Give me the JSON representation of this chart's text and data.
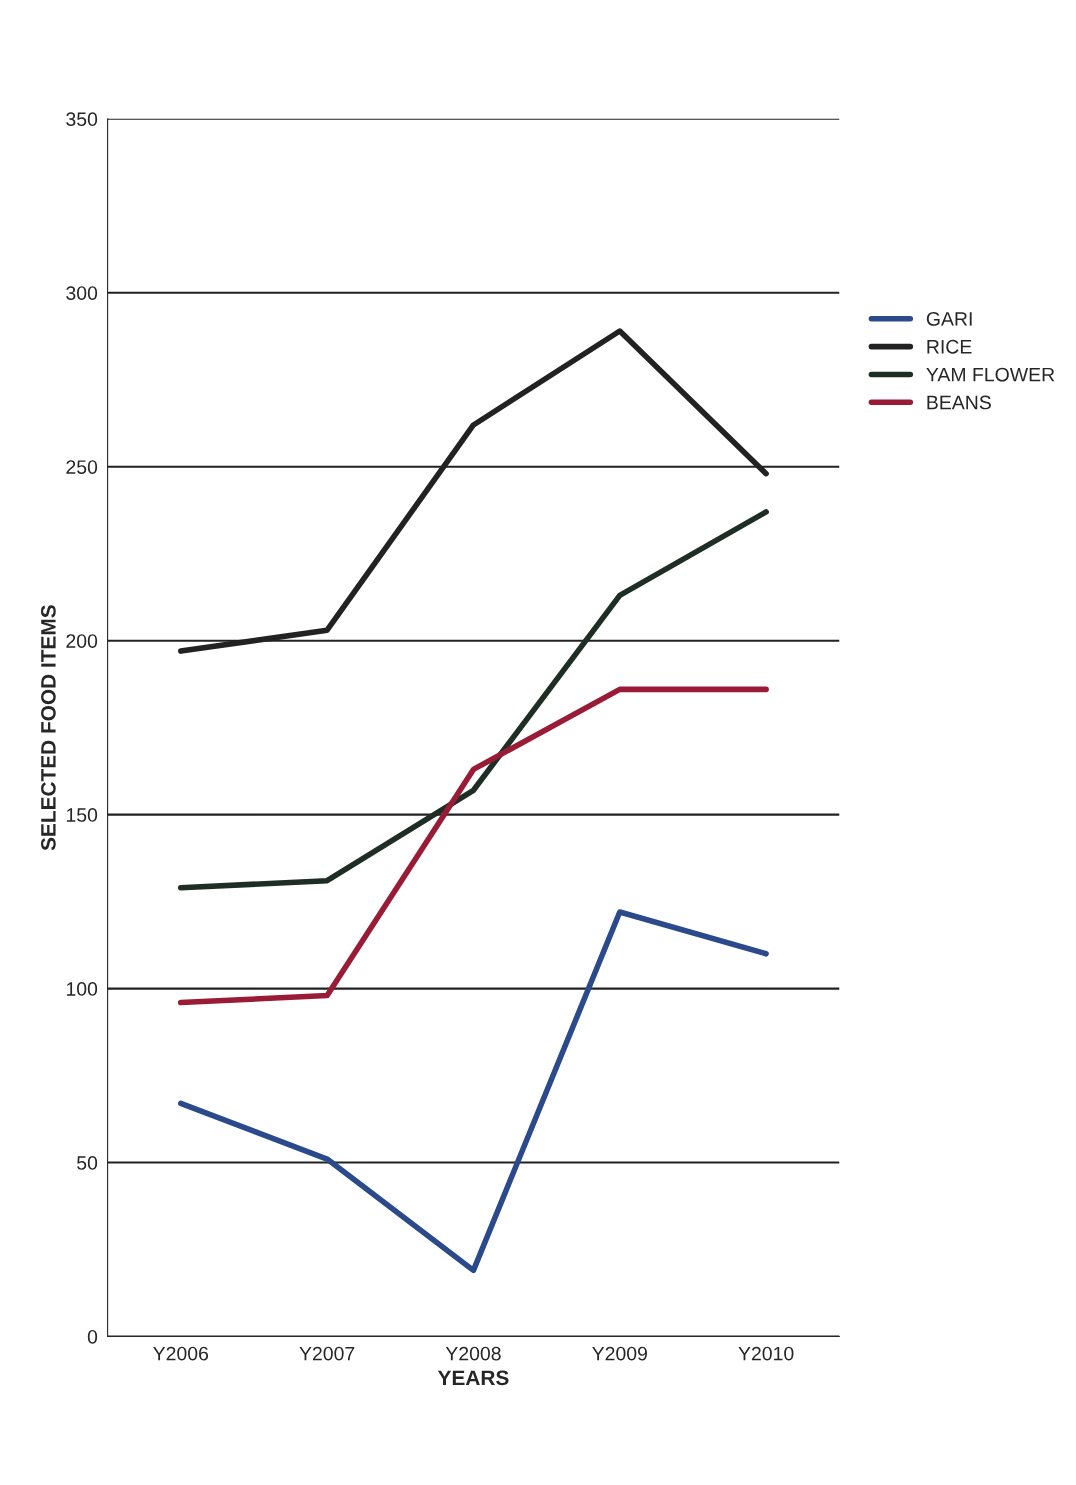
{
  "chart_data": {
    "type": "line",
    "xlabel": "YEARS",
    "ylabel": "SELECTED FOOD ITEMS",
    "categories": [
      "Y2006",
      "Y2007",
      "Y2008",
      "Y2009",
      "Y2010"
    ],
    "series": [
      {
        "name": "GARI",
        "color": "#2b4a8c",
        "values": [
          67,
          51,
          19,
          122,
          110
        ]
      },
      {
        "name": "RICE",
        "color": "#222222",
        "values": [
          197,
          203,
          262,
          289,
          248
        ]
      },
      {
        "name": "YAM FLOWER",
        "color": "#1f2e24",
        "values": [
          129,
          131,
          157,
          213,
          237
        ]
      },
      {
        "name": "BEANS",
        "color": "#9a1b35",
        "values": [
          96,
          98,
          163,
          186,
          186
        ]
      }
    ],
    "ylim": [
      0,
      350
    ],
    "yticks": [
      0,
      50,
      100,
      150,
      200,
      250,
      300,
      350
    ],
    "grid": "y",
    "legend": "right",
    "marker": "none",
    "line_style": "solid"
  }
}
